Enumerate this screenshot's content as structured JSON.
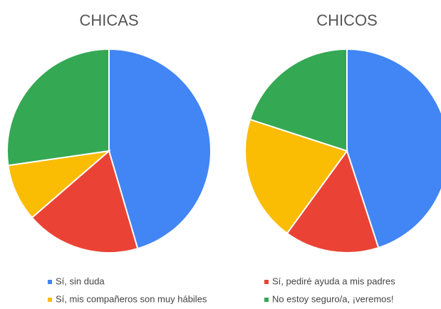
{
  "chart_data": [
    {
      "type": "pie",
      "title": "CHICAS",
      "categories": [
        "Sí, sin duda",
        "Sí, pediré ayuda a mis padres",
        "Sí, mis compañeros son muy hábiles",
        "No estoy seguro/a, ¡veremos!"
      ],
      "values": [
        45.5,
        18.2,
        9.1,
        27.3
      ],
      "colors": [
        "#4285f4",
        "#ea4335",
        "#fbbc04",
        "#34a853"
      ],
      "legend": "bottom"
    },
    {
      "type": "pie",
      "title": "CHICOS",
      "categories": [
        "Sí, sin duda",
        "Sí, pediré ayuda a mis padres",
        "Sí, mis compañeros son muy hábiles",
        "No estoy seguro/a, ¡veremos!"
      ],
      "values": [
        45,
        15,
        20,
        20
      ],
      "colors": [
        "#4285f4",
        "#ea4335",
        "#fbbc04",
        "#34a853"
      ],
      "legend": "bottom"
    }
  ]
}
